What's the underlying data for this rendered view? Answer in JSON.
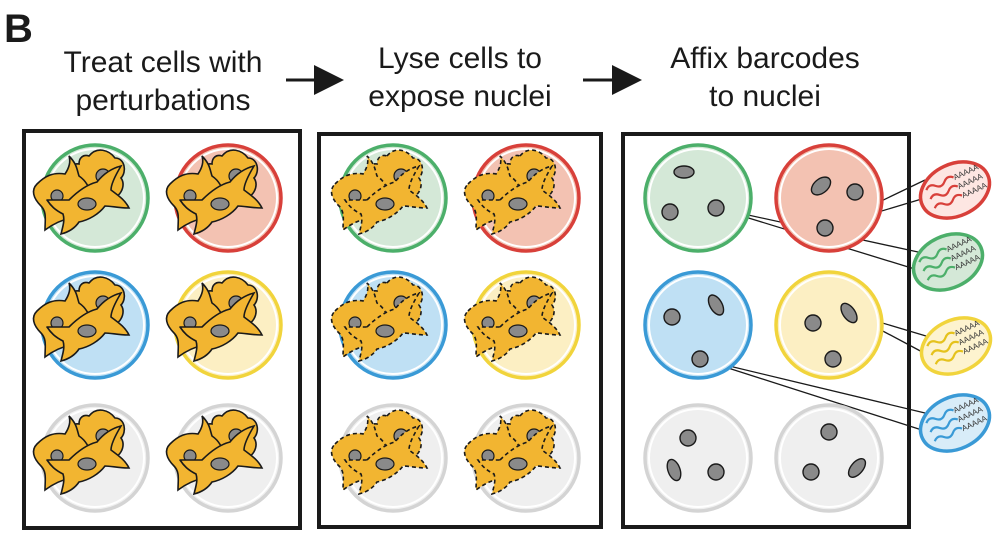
{
  "panel_letter": "B",
  "steps": [
    {
      "line1": "Treat cells with",
      "line2": "perturbations"
    },
    {
      "line1": "Lyse cells to",
      "line2": "expose nuclei"
    },
    {
      "line1": "Affix barcodes",
      "line2": "to nuclei"
    }
  ],
  "polyA_label": "AAAAA",
  "conditions": [
    {
      "name": "green",
      "ring": "#4caf6a",
      "fill": "#d4e8d7"
    },
    {
      "name": "red",
      "ring": "#d8403a",
      "fill": "#f3c2b2"
    },
    {
      "name": "blue",
      "ring": "#3a9ad6",
      "fill": "#bfe0f4"
    },
    {
      "name": "yellow",
      "ring": "#f1d43c",
      "fill": "#fcefc3"
    },
    {
      "name": "grey-a",
      "ring": "#d4d4d4",
      "fill": "#efefef"
    },
    {
      "name": "grey-b",
      "ring": "#d4d4d4",
      "fill": "#efefef"
    }
  ],
  "colors": {
    "cell_fill": "#f2b531",
    "cell_stroke": "#1a1a1a",
    "nucleus_fill": "#8a8a8a",
    "frame": "#1a1a1a"
  },
  "barcode_beads": [
    {
      "name": "red",
      "ring": "#d8403a",
      "fill": "#fde6e2",
      "strand": "#d8403a"
    },
    {
      "name": "green",
      "ring": "#4caf6a",
      "fill": "#d4e8d7",
      "strand": "#4caf6a"
    },
    {
      "name": "yellow",
      "ring": "#f1d43c",
      "fill": "#fdf3cf",
      "strand": "#e5c21c"
    },
    {
      "name": "blue",
      "ring": "#3a9ad6",
      "fill": "#d8ecf8",
      "strand": "#3a9ad6"
    }
  ]
}
